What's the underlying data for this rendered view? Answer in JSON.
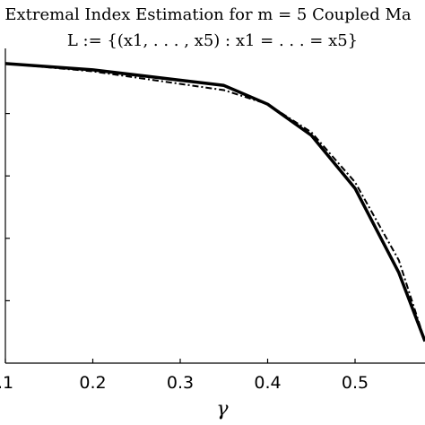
{
  "chart_data": {
    "type": "line",
    "title": "Extremal Index Estimation for m = 5 Coupled Ma",
    "subtitle": "L := {(x1, . . . , x5) : x1 = . . . = x5}",
    "xlabel": "γ",
    "ylabel": "",
    "xlim": [
      0.1,
      0.58
    ],
    "ylim": [
      0,
      1
    ],
    "x_ticks": [
      0.1,
      0.2,
      0.3,
      0.4,
      0.5
    ],
    "x_tick_labels": [
      ".1",
      "0.2",
      "0.3",
      "0.4",
      "0.5"
    ],
    "y_ticks": [
      0.2,
      0.4,
      0.6,
      0.8
    ],
    "grid": false,
    "series": [
      {
        "style": "solid",
        "x": [
          0.1,
          0.2,
          0.35,
          0.4,
          0.45,
          0.5,
          0.55,
          0.58
        ],
        "y": [
          0.96,
          0.94,
          0.89,
          0.83,
          0.73,
          0.56,
          0.29,
          0.07
        ]
      },
      {
        "style": "dashed",
        "x": [
          0.1,
          0.2,
          0.35,
          0.4,
          0.45,
          0.5,
          0.55,
          0.58
        ],
        "y": [
          0.96,
          0.935,
          0.875,
          0.83,
          0.74,
          0.58,
          0.33,
          0.07
        ]
      }
    ]
  }
}
